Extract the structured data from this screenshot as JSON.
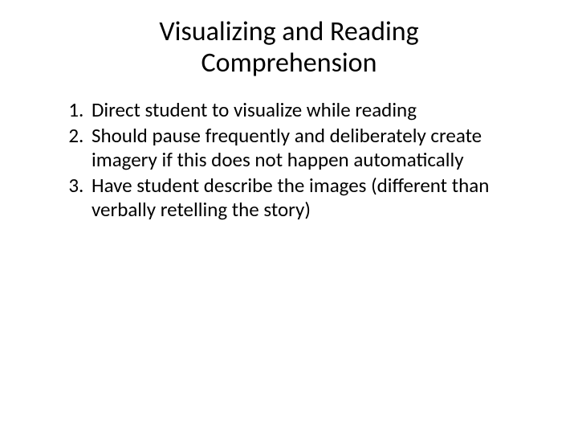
{
  "slide": {
    "title": "Visualizing and Reading Comprehension",
    "items": [
      "Direct student to visualize while reading",
      "Should pause frequently and deliberately create imagery if this does not happen automatically",
      "Have student describe the images (different than verbally retelling the story)"
    ],
    "title_fontsize": 34,
    "body_fontsize": 25,
    "text_color": "#000000",
    "background_color": "#ffffff"
  }
}
